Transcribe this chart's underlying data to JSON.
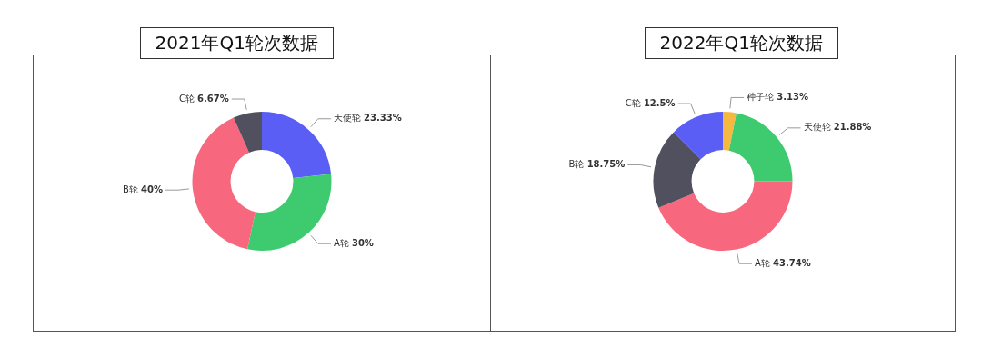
{
  "chart_data": [
    {
      "type": "donut",
      "title": "2021年Q1轮次数据",
      "categories": [
        "天使轮",
        "A轮",
        "B轮",
        "C轮"
      ],
      "values": [
        23.33,
        30,
        40,
        6.67
      ],
      "value_labels": [
        "23.33%",
        "30%",
        "40%",
        "6.67%"
      ],
      "colors": [
        "#5b5ef5",
        "#3ecb6f",
        "#f7687f",
        "#50505f"
      ],
      "legend": false
    },
    {
      "type": "donut",
      "title": "2022年Q1轮次数据",
      "categories": [
        "种子轮",
        "天使轮",
        "A轮",
        "B轮",
        "C轮"
      ],
      "values": [
        3.13,
        21.88,
        43.74,
        18.75,
        12.5
      ],
      "value_labels": [
        "3.13%",
        "21.88%",
        "43.74%",
        "18.75%",
        "12.5%"
      ],
      "colors": [
        "#f5b942",
        "#3ecb6f",
        "#f7687f",
        "#50505f",
        "#5b5ef5"
      ],
      "legend": false
    }
  ]
}
